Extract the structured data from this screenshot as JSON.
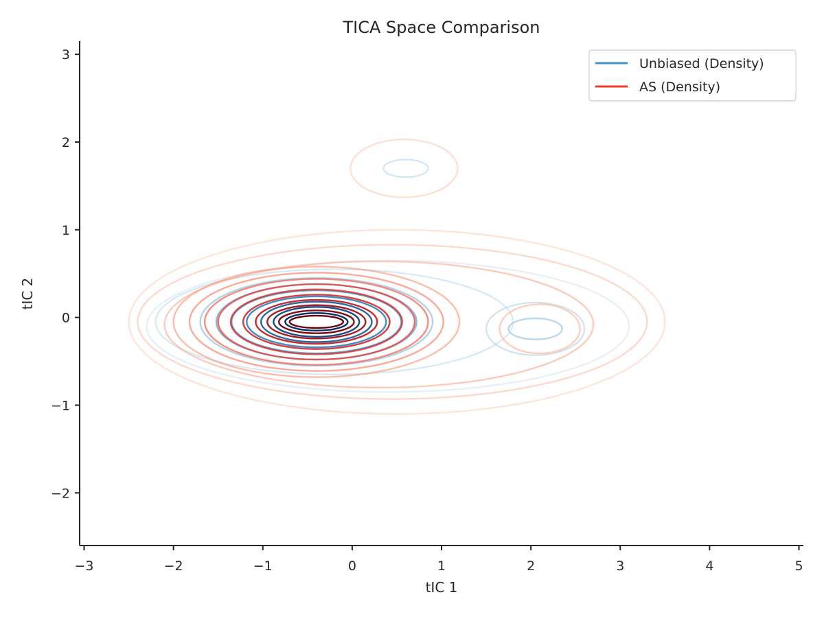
{
  "chart_data": {
    "type": "contour",
    "title": "TICA Space Comparison",
    "xlabel": "tIC 1",
    "ylabel": "tIC 2",
    "xlim": [
      -3.05,
      5.05
    ],
    "ylim": [
      -2.6,
      3.15
    ],
    "xticks": [
      -3,
      -2,
      -1,
      0,
      1,
      2,
      3,
      4,
      5
    ],
    "yticks": [
      -2,
      -1,
      0,
      1,
      2,
      3
    ],
    "xtick_labels": [
      "−3",
      "−2",
      "−1",
      "0",
      "1",
      "2",
      "3",
      "4",
      "5"
    ],
    "ytick_labels": [
      "−2",
      "−1",
      "0",
      "1",
      "2",
      "3"
    ],
    "grid": false,
    "legend_position": "top-right",
    "series": [
      {
        "name": "Unbiased (Density)",
        "legend_color": "#4292c6",
        "colormap": "Blues",
        "contours": [
          {
            "cx": -0.4,
            "cy": -0.05,
            "rx": 0.35,
            "ry": 0.1,
            "level": 1.0
          },
          {
            "cx": -0.4,
            "cy": -0.05,
            "rx": 0.48,
            "ry": 0.17,
            "level": 0.92
          },
          {
            "cx": -0.4,
            "cy": -0.05,
            "rx": 0.62,
            "ry": 0.23,
            "level": 0.84
          },
          {
            "cx": -0.4,
            "cy": -0.05,
            "rx": 0.78,
            "ry": 0.29,
            "level": 0.72
          },
          {
            "cx": -0.4,
            "cy": -0.05,
            "rx": 0.95,
            "ry": 0.36,
            "level": 0.6
          },
          {
            "cx": -0.4,
            "cy": -0.05,
            "rx": 1.12,
            "ry": 0.43,
            "level": 0.45
          },
          {
            "cx": -0.4,
            "cy": -0.05,
            "rx": 1.3,
            "ry": 0.5,
            "level": 0.32
          },
          {
            "cx": 2.05,
            "cy": -0.13,
            "rx": 0.3,
            "ry": 0.12,
            "level": 0.3
          },
          {
            "cx": 2.05,
            "cy": -0.13,
            "rx": 0.55,
            "ry": 0.3,
            "level": 0.2
          },
          {
            "cx": 0.6,
            "cy": 1.7,
            "rx": 0.25,
            "ry": 0.1,
            "level": 0.18
          },
          {
            "cx": -0.2,
            "cy": -0.05,
            "rx": 2.0,
            "ry": 0.6,
            "level": 0.15
          },
          {
            "cx": 0.4,
            "cy": -0.1,
            "rx": 2.7,
            "ry": 0.75,
            "level": 0.08
          }
        ]
      },
      {
        "name": "AS (Density)",
        "legend_color": "#ef3b2c",
        "colormap": "Reds",
        "contours": [
          {
            "cx": -0.4,
            "cy": -0.05,
            "rx": 0.3,
            "ry": 0.07,
            "level": 1.0
          },
          {
            "cx": -0.4,
            "cy": -0.05,
            "rx": 0.42,
            "ry": 0.13,
            "level": 0.95
          },
          {
            "cx": -0.4,
            "cy": -0.05,
            "rx": 0.55,
            "ry": 0.19,
            "level": 0.88
          },
          {
            "cx": -0.4,
            "cy": -0.05,
            "rx": 0.68,
            "ry": 0.25,
            "level": 0.8
          },
          {
            "cx": -0.4,
            "cy": -0.05,
            "rx": 0.82,
            "ry": 0.31,
            "level": 0.72
          },
          {
            "cx": -0.4,
            "cy": -0.05,
            "rx": 0.96,
            "ry": 0.37,
            "level": 0.62
          },
          {
            "cx": -0.4,
            "cy": -0.05,
            "rx": 1.1,
            "ry": 0.43,
            "level": 0.52
          },
          {
            "cx": -0.4,
            "cy": -0.05,
            "rx": 1.25,
            "ry": 0.49,
            "level": 0.42
          },
          {
            "cx": -0.4,
            "cy": -0.05,
            "rx": 1.42,
            "ry": 0.56,
            "level": 0.33
          },
          {
            "cx": -0.4,
            "cy": -0.05,
            "rx": 1.6,
            "ry": 0.63,
            "level": 0.26
          },
          {
            "cx": 0.3,
            "cy": -0.08,
            "rx": 2.4,
            "ry": 0.72,
            "level": 0.2
          },
          {
            "cx": 0.45,
            "cy": -0.05,
            "rx": 2.85,
            "ry": 0.88,
            "level": 0.13
          },
          {
            "cx": 0.5,
            "cy": -0.05,
            "rx": 3.0,
            "ry": 1.05,
            "level": 0.08
          },
          {
            "cx": 0.58,
            "cy": 1.7,
            "rx": 0.6,
            "ry": 0.33,
            "level": 0.1
          },
          {
            "cx": 2.1,
            "cy": -0.13,
            "rx": 0.45,
            "ry": 0.28,
            "level": 0.18
          }
        ]
      }
    ]
  }
}
